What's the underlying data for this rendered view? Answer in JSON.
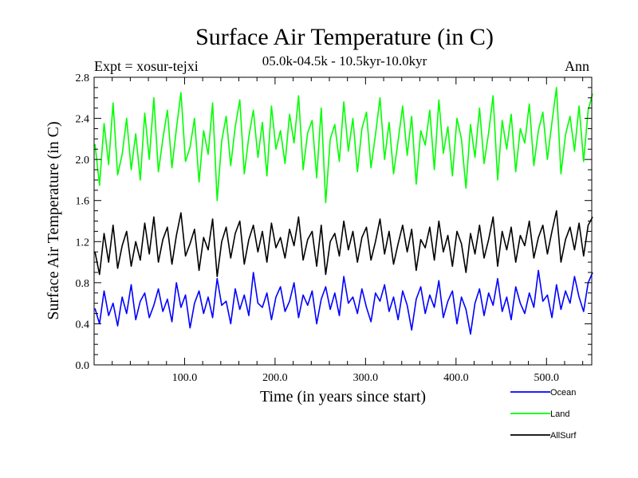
{
  "chart_data": {
    "type": "line",
    "title": "Surface Air Temperature (in C)",
    "subtitle": "05.0k-04.5k - 10.5kyr-10.0kyr",
    "left_label": "Expt = xosur-tejxi",
    "right_label": "Ann",
    "xlabel": "Time (in years since start)",
    "ylabel": "Surface Air Temperature (in C)",
    "xlim": [
      0,
      550
    ],
    "ylim": [
      0.0,
      2.8
    ],
    "x_ticks": [
      100,
      200,
      300,
      400,
      500
    ],
    "x_tick_labels": [
      "100.0",
      "200.0",
      "300.0",
      "400.0",
      "500.0"
    ],
    "y_ticks": [
      0.0,
      0.4,
      0.8,
      1.2,
      1.6,
      2.0,
      2.4,
      2.8
    ],
    "y_tick_labels": [
      "0.0",
      "0.4",
      "0.8",
      "1.2",
      "1.6",
      "2.0",
      "2.4",
      "2.8"
    ],
    "x_start": 1,
    "x_step": 5,
    "series": [
      {
        "name": "Ocean",
        "color": "#0000ff",
        "values": [
          0.55,
          0.4,
          0.72,
          0.48,
          0.6,
          0.38,
          0.66,
          0.5,
          0.78,
          0.44,
          0.62,
          0.7,
          0.46,
          0.58,
          0.74,
          0.52,
          0.64,
          0.42,
          0.8,
          0.56,
          0.68,
          0.36,
          0.6,
          0.72,
          0.5,
          0.66,
          0.46,
          0.84,
          0.58,
          0.62,
          0.4,
          0.74,
          0.54,
          0.68,
          0.48,
          0.9,
          0.6,
          0.56,
          0.7,
          0.44,
          0.66,
          0.76,
          0.52,
          0.62,
          0.8,
          0.46,
          0.68,
          0.58,
          0.72,
          0.4,
          0.64,
          0.76,
          0.54,
          0.7,
          0.48,
          0.86,
          0.6,
          0.66,
          0.5,
          0.74,
          0.56,
          0.42,
          0.7,
          0.62,
          0.78,
          0.52,
          0.66,
          0.44,
          0.72,
          0.58,
          0.34,
          0.64,
          0.76,
          0.5,
          0.68,
          0.56,
          0.82,
          0.46,
          0.62,
          0.72,
          0.4,
          0.66,
          0.54,
          0.3,
          0.6,
          0.74,
          0.48,
          0.7,
          0.58,
          0.84,
          0.52,
          0.66,
          0.44,
          0.76,
          0.6,
          0.5,
          0.7,
          0.56,
          0.92,
          0.62,
          0.68,
          0.46,
          0.78,
          0.54,
          0.72,
          0.6,
          0.86,
          0.66,
          0.52,
          0.8,
          0.9
        ]
      },
      {
        "name": "Land",
        "color": "#00ff00",
        "values": [
          2.15,
          1.75,
          2.35,
          1.95,
          2.55,
          1.85,
          2.05,
          2.4,
          1.9,
          2.25,
          1.8,
          2.45,
          2.0,
          2.6,
          1.88,
          2.2,
          2.48,
          1.92,
          2.3,
          2.65,
          1.98,
          2.12,
          2.4,
          1.78,
          2.28,
          2.05,
          2.55,
          1.6,
          2.18,
          2.42,
          1.94,
          2.32,
          2.58,
          1.86,
          2.22,
          2.48,
          2.02,
          2.36,
          1.84,
          2.52,
          2.1,
          2.28,
          1.96,
          2.44,
          2.16,
          2.62,
          1.9,
          2.26,
          2.38,
          1.82,
          2.5,
          1.58,
          2.2,
          2.34,
          1.98,
          2.56,
          2.08,
          2.4,
          1.88,
          2.3,
          2.46,
          1.92,
          2.24,
          2.6,
          2.0,
          2.36,
          1.86,
          2.18,
          2.52,
          2.04,
          2.42,
          1.76,
          2.28,
          2.14,
          2.48,
          1.9,
          2.58,
          2.06,
          2.32,
          1.84,
          2.4,
          2.2,
          1.72,
          2.34,
          2.02,
          2.5,
          1.96,
          2.26,
          2.62,
          1.8,
          2.38,
          2.1,
          2.44,
          1.88,
          2.3,
          2.16,
          2.54,
          1.94,
          2.28,
          2.46,
          2.0,
          2.36,
          2.7,
          1.86,
          2.24,
          2.42,
          2.08,
          2.52,
          1.98,
          2.48,
          2.64
        ]
      },
      {
        "name": "AllSurf",
        "color": "#000000",
        "values": [
          1.1,
          0.88,
          1.28,
          1.0,
          1.36,
          0.94,
          1.16,
          1.3,
          0.96,
          1.2,
          1.02,
          1.38,
          1.08,
          1.44,
          1.0,
          1.22,
          1.34,
          0.98,
          1.26,
          1.48,
          1.06,
          1.18,
          1.32,
          0.92,
          1.24,
          1.12,
          1.42,
          0.86,
          1.2,
          1.34,
          1.04,
          1.28,
          1.4,
          0.98,
          1.22,
          1.36,
          1.1,
          1.3,
          1.0,
          1.38,
          1.14,
          1.24,
          1.04,
          1.32,
          1.16,
          1.44,
          1.02,
          1.22,
          1.3,
          0.96,
          1.36,
          0.88,
          1.2,
          1.28,
          1.06,
          1.4,
          1.12,
          1.3,
          1.0,
          1.24,
          1.34,
          1.02,
          1.2,
          1.42,
          1.08,
          1.3,
          0.98,
          1.18,
          1.36,
          1.1,
          1.32,
          0.92,
          1.22,
          1.14,
          1.34,
          1.02,
          1.4,
          1.1,
          1.26,
          0.96,
          1.3,
          1.18,
          0.9,
          1.28,
          1.08,
          1.36,
          1.04,
          1.22,
          1.44,
          0.96,
          1.3,
          1.12,
          1.34,
          1.0,
          1.26,
          1.16,
          1.4,
          1.04,
          1.24,
          1.36,
          1.08,
          1.3,
          1.5,
          1.0,
          1.22,
          1.34,
          1.12,
          1.38,
          1.06,
          1.36,
          1.44
        ]
      }
    ]
  }
}
